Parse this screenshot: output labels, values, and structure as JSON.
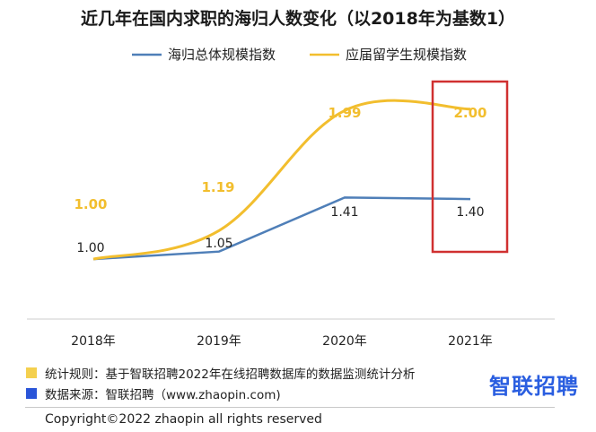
{
  "chart_data": {
    "type": "line",
    "title": "近几年在国内求职的海归人数变化（以2018年为基数1）",
    "categories": [
      "2018年",
      "2019年",
      "2020年",
      "2021年"
    ],
    "series": [
      {
        "name": "海归总体规模指数",
        "color": "#4F7FB8",
        "values": [
          1.0,
          1.05,
          1.41,
          1.4
        ],
        "labels": [
          "1.00",
          "1.05",
          "1.41",
          "1.40"
        ]
      },
      {
        "name": "应届留学生规模指数",
        "color": "#F2BE2E",
        "values": [
          1.0,
          1.19,
          1.99,
          2.0
        ],
        "labels": [
          "1.00",
          "1.19",
          "1.99",
          "2.00"
        ]
      }
    ],
    "ylim": [
      0.6,
      2.5
    ],
    "grid": false,
    "legend_position": "top-center",
    "highlight": {
      "category": "2021年",
      "color": "#D03030"
    }
  },
  "footer": {
    "rule_text": "统计规则：基于智联招聘2022年在线招聘数据库的数据监测统计分析",
    "rule_color": "#F4D04E",
    "source_text": "数据来源：智联招聘（www.zhaopin.com)",
    "source_color": "#2A55D8",
    "brand": "智联招聘",
    "copyright": "Copyright©2022 zhaopin all rights reserved"
  }
}
